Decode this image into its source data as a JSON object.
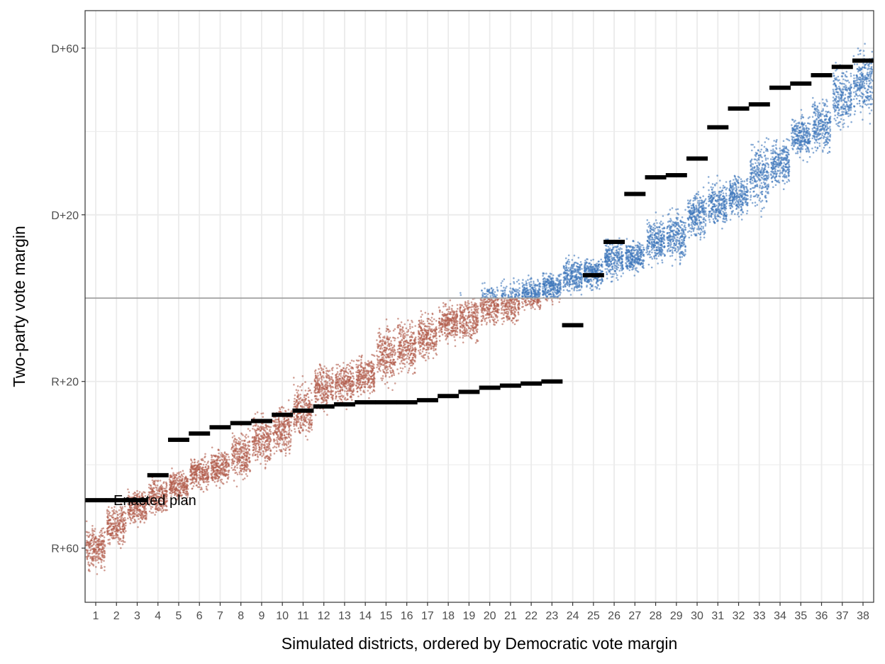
{
  "chart_data": {
    "type": "scatter",
    "title": "",
    "xlabel": "Simulated districts, ordered by Democratic vote margin",
    "ylabel": "Two-party vote margin",
    "x_tick_labels": [
      "1",
      "2",
      "3",
      "4",
      "5",
      "6",
      "7",
      "8",
      "9",
      "10",
      "11",
      "12",
      "13",
      "14",
      "15",
      "16",
      "17",
      "18",
      "19",
      "20",
      "21",
      "22",
      "23",
      "24",
      "25",
      "26",
      "27",
      "28",
      "29",
      "30",
      "31",
      "32",
      "33",
      "34",
      "35",
      "36",
      "37",
      "38"
    ],
    "y_ticks": [
      {
        "value": -60,
        "label": "R+60"
      },
      {
        "value": -20,
        "label": "R+20"
      },
      {
        "value": 20,
        "label": "D+20"
      },
      {
        "value": 60,
        "label": "D+60"
      }
    ],
    "ylim": [
      -73,
      69
    ],
    "grid": true,
    "reference_line": 0,
    "colors": {
      "republican": "#B25D4C",
      "democratic": "#3D77BB",
      "enacted": "#000000",
      "reference": "#9e9e9e",
      "grid": "#ebebeb"
    },
    "simulated_ranges": [
      {
        "district": 1,
        "low": -67,
        "high": -53
      },
      {
        "district": 2,
        "low": -61,
        "high": -48
      },
      {
        "district": 3,
        "low": -56,
        "high": -45
      },
      {
        "district": 4,
        "low": -53,
        "high": -42
      },
      {
        "district": 5,
        "low": -50,
        "high": -40
      },
      {
        "district": 6,
        "low": -47,
        "high": -37
      },
      {
        "district": 7,
        "low": -46,
        "high": -35
      },
      {
        "district": 8,
        "low": -46,
        "high": -30
      },
      {
        "district": 9,
        "low": -42,
        "high": -26
      },
      {
        "district": 10,
        "low": -40,
        "high": -23
      },
      {
        "district": 11,
        "low": -36,
        "high": -18
      },
      {
        "district": 12,
        "low": -29,
        "high": -14
      },
      {
        "district": 13,
        "low": -27,
        "high": -14
      },
      {
        "district": 14,
        "low": -25,
        "high": -12
      },
      {
        "district": 15,
        "low": -23,
        "high": -4
      },
      {
        "district": 16,
        "low": -20,
        "high": -3
      },
      {
        "district": 17,
        "low": -16,
        "high": -2
      },
      {
        "district": 18,
        "low": -12,
        "high": 0
      },
      {
        "district": 19,
        "low": -12,
        "high": 2
      },
      {
        "district": 20,
        "low": -8,
        "high": 5
      },
      {
        "district": 21,
        "low": -8,
        "high": 6
      },
      {
        "district": 22,
        "low": -4,
        "high": 6
      },
      {
        "district": 23,
        "low": -2,
        "high": 7
      },
      {
        "district": 24,
        "low": 0,
        "high": 11
      },
      {
        "district": 25,
        "low": 1,
        "high": 11
      },
      {
        "district": 26,
        "low": 3,
        "high": 16
      },
      {
        "district": 27,
        "low": 5,
        "high": 15
      },
      {
        "district": 28,
        "low": 6,
        "high": 21
      },
      {
        "district": 29,
        "low": 7,
        "high": 23
      },
      {
        "district": 30,
        "low": 12,
        "high": 28
      },
      {
        "district": 31,
        "low": 15,
        "high": 30
      },
      {
        "district": 32,
        "low": 18,
        "high": 31
      },
      {
        "district": 33,
        "low": 19,
        "high": 40
      },
      {
        "district": 34,
        "low": 25,
        "high": 40
      },
      {
        "district": 35,
        "low": 32,
        "high": 46
      },
      {
        "district": 36,
        "low": 33,
        "high": 50
      },
      {
        "district": 37,
        "low": 39,
        "high": 58
      },
      {
        "district": 38,
        "low": 41,
        "high": 62
      }
    ],
    "enacted_plan": {
      "label": "Enacted plan",
      "values": [
        -48.5,
        -48.5,
        -48.5,
        -42.5,
        -34,
        -32.5,
        -31,
        -30,
        -29.5,
        -28,
        -27,
        -26,
        -25.5,
        -25,
        -25,
        -25,
        -24.5,
        -23.5,
        -22.5,
        -21.5,
        -21,
        -20.5,
        -20,
        -6.5,
        5.5,
        13.5,
        25,
        29,
        29.5,
        33.5,
        41,
        45.5,
        46.5,
        50.5,
        51.5,
        53.5,
        55.5,
        57
      ]
    }
  }
}
